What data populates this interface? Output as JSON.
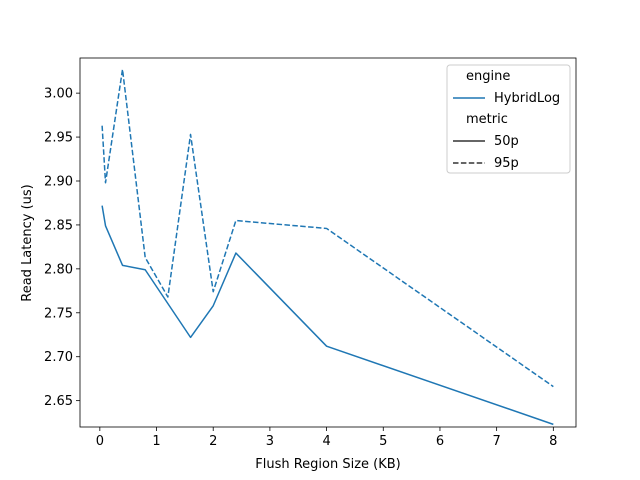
{
  "chart_data": {
    "type": "line",
    "title": "",
    "xlabel": "Flush Region Size (KB)",
    "ylabel": "Read Latency (us)",
    "xlim": [
      -0.35,
      8.4
    ],
    "ylim": [
      2.62,
      3.04
    ],
    "x_ticks": [
      0,
      1,
      2,
      3,
      4,
      5,
      6,
      7,
      8
    ],
    "y_ticks": [
      2.65,
      2.7,
      2.75,
      2.8,
      2.85,
      2.9,
      2.95,
      3.0
    ],
    "y_tick_labels": [
      "2.65",
      "2.70",
      "2.75",
      "2.80",
      "2.85",
      "2.90",
      "2.95",
      "3.00"
    ],
    "grid": false,
    "legend_placement": "top-right",
    "legend": {
      "engine_title": "engine",
      "engine_entry": "HybridLog",
      "metric_title": "metric",
      "metric_entries": [
        "50p",
        "95p"
      ]
    },
    "color": "#1f77b4",
    "series": [
      {
        "name": "50p",
        "style": "solid",
        "x": [
          0.04,
          0.1,
          0.4,
          0.8,
          1.6,
          2.0,
          2.4,
          4.0,
          8.0
        ],
        "values": [
          2.872,
          2.849,
          2.804,
          2.799,
          2.722,
          2.758,
          2.818,
          2.712,
          2.623
        ]
      },
      {
        "name": "95p",
        "style": "dashed",
        "x": [
          0.04,
          0.1,
          0.4,
          0.8,
          1.2,
          1.6,
          2.0,
          2.4,
          4.0,
          8.0
        ],
        "values": [
          2.963,
          2.898,
          3.027,
          2.813,
          2.768,
          2.953,
          2.774,
          2.855,
          2.846,
          2.666
        ]
      }
    ]
  }
}
